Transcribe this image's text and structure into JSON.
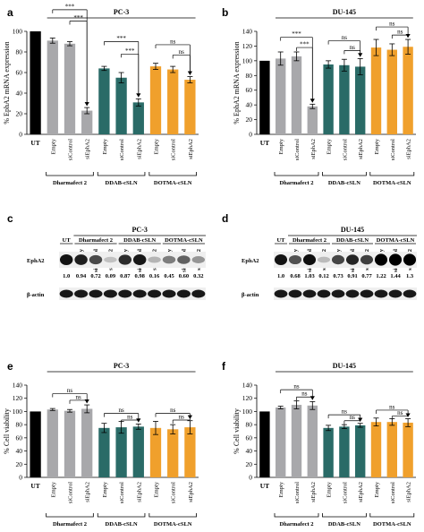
{
  "colors": {
    "UT": "#000000",
    "Dharmafect 2": "#a8a8ab",
    "DDAB-cSLN": "#2a6b67",
    "DOTMA-cSLN": "#f0a02c"
  },
  "blots": {
    "c": {
      "label": "c",
      "cell": "PC-3",
      "groups": [
        "UT",
        "Dharmafect 2",
        "DDAB-cSLN",
        "DOTMA-cSLN"
      ],
      "lanes": [
        "Empty",
        "siControl",
        "siEphA2",
        "Empty",
        "siControl",
        "siEphA2",
        "Empty",
        "siControl",
        "siEphA2"
      ],
      "protein": "EphA2",
      "loading": "β-actin",
      "quant": [
        "1.0",
        "0.94",
        "0.72",
        "0.09",
        "0.87",
        "0.98",
        "0.16",
        "0.45",
        "0.60",
        "0.32"
      ],
      "band_levels": [
        1.0,
        0.94,
        0.72,
        0.09,
        0.87,
        0.98,
        0.16,
        0.45,
        0.6,
        0.32
      ]
    },
    "d": {
      "label": "d",
      "cell": "DU-145",
      "groups": [
        "UT",
        "Dharmafect 2",
        "DDAB-cSLN",
        "DOTMA-cSLN"
      ],
      "lanes": [
        "Empty",
        "siControl",
        "siEphA2",
        "Empty",
        "siControl",
        "siEphA2",
        "Empty",
        "siControl",
        "siEphA2"
      ],
      "protein": "EphA2",
      "loading": "β-actin",
      "quant": [
        "1.0",
        "0.68",
        "1.03",
        "0.12",
        "0.73",
        "0.91",
        "0.77",
        "1.22",
        "1.44",
        "1.3"
      ],
      "band_levels": [
        1.0,
        0.68,
        1.03,
        0.12,
        0.73,
        0.91,
        0.77,
        1.22,
        1.44,
        1.3
      ]
    }
  },
  "chart_data": [
    {
      "label": "a",
      "type": "bar",
      "title": "PC-3",
      "ylabel": "% EphA2 mRNA expression",
      "ylim": [
        0,
        100
      ],
      "yticks": [
        0,
        20,
        40,
        60,
        80,
        100
      ],
      "categories": [
        "UT",
        "Empty",
        "siControl",
        "siEphA2",
        "Empty",
        "siControl",
        "siEphA2",
        "Empty",
        "siControl",
        "siEphA2"
      ],
      "groups": [
        "UT",
        "Dharmafect 2",
        "Dharmafect 2",
        "Dharmafect 2",
        "DDAB-cSLN",
        "DDAB-cSLN",
        "DDAB-cSLN",
        "DOTMA-cSLN",
        "DOTMA-cSLN",
        "DOTMA-cSLN"
      ],
      "group_labels": [
        "Dharmafect 2",
        "DDAB-cSLN",
        "DOTMA-cSLN"
      ],
      "values": [
        100,
        91,
        88,
        23,
        64,
        55,
        31,
        66,
        63,
        53
      ],
      "errors": [
        0,
        2.5,
        2,
        3,
        2,
        5,
        3.5,
        3,
        3,
        3
      ],
      "annotations": [
        {
          "from": 1,
          "to": 3,
          "text": "***",
          "y": 121
        },
        {
          "from": 2,
          "to": 3,
          "text": "***",
          "y": 110
        },
        {
          "from": 4,
          "to": 6,
          "text": "***",
          "y": 90
        },
        {
          "from": 5,
          "to": 6,
          "text": "***",
          "y": 78
        },
        {
          "from": 7,
          "to": 9,
          "text": "ns",
          "y": 87
        },
        {
          "from": 8,
          "to": 9,
          "text": "ns",
          "y": 77
        }
      ]
    },
    {
      "label": "b",
      "type": "bar",
      "title": "DU-145",
      "ylabel": "% EphA2 mRNA expression",
      "ylim": [
        0,
        140
      ],
      "yticks": [
        0,
        20,
        40,
        60,
        80,
        100,
        120,
        140
      ],
      "categories": [
        "UT",
        "Empty",
        "siControl",
        "siEphA2",
        "Empty",
        "siControl",
        "siEphA2",
        "Empty",
        "siControl",
        "siEphA2"
      ],
      "groups": [
        "UT",
        "Dharmafect 2",
        "Dharmafect 2",
        "Dharmafect 2",
        "DDAB-cSLN",
        "DDAB-cSLN",
        "DDAB-cSLN",
        "DOTMA-cSLN",
        "DOTMA-cSLN",
        "DOTMA-cSLN"
      ],
      "group_labels": [
        "Dharmafect 2",
        "DDAB-cSLN",
        "DOTMA-cSLN"
      ],
      "values": [
        100,
        103,
        106,
        38,
        95,
        94,
        92,
        118,
        115,
        119
      ],
      "errors": [
        0,
        9,
        6,
        3,
        5,
        8,
        11,
        11,
        8,
        10
      ],
      "annotations": [
        {
          "from": 1,
          "to": 3,
          "text": "***",
          "y": 132
        },
        {
          "from": 2,
          "to": 3,
          "text": "***",
          "y": 118
        },
        {
          "from": 4,
          "to": 6,
          "text": "ns",
          "y": 127
        },
        {
          "from": 5,
          "to": 6,
          "text": "ns",
          "y": 114
        },
        {
          "from": 7,
          "to": 9,
          "text": "ns",
          "y": 146
        },
        {
          "from": 8,
          "to": 9,
          "text": "ns",
          "y": 135
        }
      ]
    },
    {
      "label": "e",
      "type": "bar",
      "title": "PC-3",
      "ylabel": "% Cell viability",
      "ylim": [
        0,
        140
      ],
      "yticks": [
        0,
        20,
        40,
        60,
        80,
        100,
        120,
        140
      ],
      "categories": [
        "UT",
        "Empty",
        "siControl",
        "siEphA2",
        "Empty",
        "siControl",
        "siEphA2",
        "Empty",
        "siControl",
        "siEphA2"
      ],
      "groups": [
        "UT",
        "Dharmafect 2",
        "Dharmafect 2",
        "Dharmafect 2",
        "DDAB-cSLN",
        "DDAB-cSLN",
        "DDAB-cSLN",
        "DOTMA-cSLN",
        "DOTMA-cSLN",
        "DOTMA-cSLN"
      ],
      "group_labels": [
        "Dharmafect 2",
        "DDAB-cSLN",
        "DOTMA-cSLN"
      ],
      "values": [
        100,
        103,
        101,
        104,
        75,
        76,
        77,
        75,
        73,
        76
      ],
      "errors": [
        0,
        1.5,
        2,
        6,
        7,
        9,
        4,
        10,
        7,
        10
      ],
      "annotations": [
        {
          "from": 1,
          "to": 3,
          "text": "ns",
          "y": 127
        },
        {
          "from": 2,
          "to": 3,
          "text": "ns",
          "y": 117
        },
        {
          "from": 4,
          "to": 6,
          "text": "ns",
          "y": 97
        },
        {
          "from": 5,
          "to": 6,
          "text": "ns",
          "y": 87
        },
        {
          "from": 7,
          "to": 9,
          "text": "ns",
          "y": 97
        },
        {
          "from": 8,
          "to": 9,
          "text": "ns",
          "y": 87
        }
      ]
    },
    {
      "label": "f",
      "type": "bar",
      "title": "DU-145",
      "ylabel": "% Cell viability",
      "ylim": [
        0,
        140
      ],
      "yticks": [
        0,
        20,
        40,
        60,
        80,
        100,
        120,
        140
      ],
      "categories": [
        "UT",
        "Empty",
        "siControl",
        "siEphA2",
        "Empty",
        "siControl",
        "siEphA2",
        "Empty",
        "siControl",
        "siEphA2"
      ],
      "groups": [
        "UT",
        "Dharmafect 2",
        "Dharmafect 2",
        "Dharmafect 2",
        "DDAB-cSLN",
        "DDAB-cSLN",
        "DDAB-cSLN",
        "DOTMA-cSLN",
        "DOTMA-cSLN",
        "DOTMA-cSLN"
      ],
      "group_labels": [
        "Dharmafect 2",
        "DDAB-cSLN",
        "DOTMA-cSLN"
      ],
      "values": [
        100,
        106,
        110,
        109,
        75,
        77,
        79,
        84,
        84,
        83
      ],
      "errors": [
        0,
        2,
        6,
        6,
        4,
        3,
        3,
        6,
        5,
        6
      ],
      "annotations": [
        {
          "from": 1,
          "to": 3,
          "text": "ns",
          "y": 133
        },
        {
          "from": 2,
          "to": 3,
          "text": "ns",
          "y": 122
        },
        {
          "from": 4,
          "to": 6,
          "text": "ns",
          "y": 95
        },
        {
          "from": 5,
          "to": 6,
          "text": "ns",
          "y": 86
        },
        {
          "from": 7,
          "to": 9,
          "text": "ns",
          "y": 102
        },
        {
          "from": 8,
          "to": 9,
          "text": "ns",
          "y": 93
        }
      ]
    }
  ]
}
